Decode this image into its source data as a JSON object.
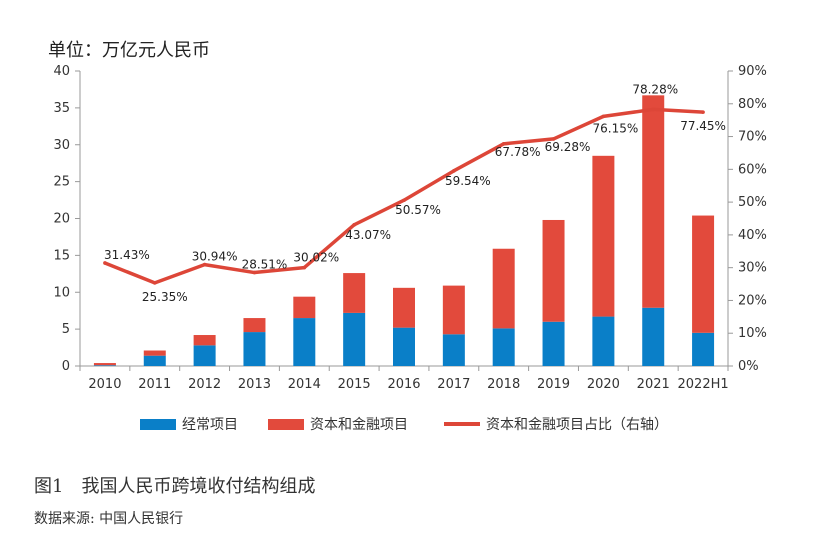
{
  "unit_label": "单位：万亿元人民币",
  "caption": "图1　我国人民币跨境收付结构组成",
  "source": "数据来源: 中国人民银行",
  "colors": {
    "current_account": "#0a7fc8",
    "capital_financial": "#e24a3c",
    "ratio_line": "#dd4638",
    "axis": "#999999"
  },
  "chart_data": {
    "type": "bar",
    "stacked": true,
    "categories": [
      "2010",
      "2011",
      "2012",
      "2013",
      "2014",
      "2015",
      "2016",
      "2017",
      "2018",
      "2019",
      "2020",
      "2021",
      "2022H1"
    ],
    "series": [
      {
        "name": "经常项目",
        "type": "bar",
        "axis": "left",
        "values": [
          0.1,
          1.4,
          2.8,
          4.6,
          6.5,
          7.2,
          5.2,
          4.3,
          5.1,
          6.0,
          6.7,
          7.9,
          4.5
        ]
      },
      {
        "name": "资本和金融项目",
        "type": "bar",
        "axis": "left",
        "values": [
          0.3,
          0.7,
          1.4,
          1.9,
          2.9,
          5.4,
          5.4,
          6.6,
          10.8,
          13.8,
          21.8,
          28.8,
          15.9
        ]
      },
      {
        "name": "资本和金融项目占比（右轴）",
        "type": "line",
        "axis": "right",
        "values": [
          31.43,
          25.35,
          30.94,
          28.51,
          30.02,
          43.07,
          50.57,
          59.54,
          67.78,
          69.28,
          76.15,
          78.28,
          77.45
        ],
        "labels": [
          "31.43%",
          "25.35%",
          "30.94%",
          "28.51%",
          "30.02%",
          "43.07%",
          "50.57%",
          "59.54%",
          "67.78%",
          "69.28%",
          "76.15%",
          "78.28%",
          "77.45%"
        ]
      }
    ],
    "y_left": {
      "min": 0,
      "max": 40,
      "ticks": [
        "0",
        "5",
        "10",
        "15",
        "20",
        "25",
        "30",
        "35",
        "40"
      ]
    },
    "y_right": {
      "min": 0,
      "max": 90,
      "ticks": [
        "0%",
        "10%",
        "20%",
        "30%",
        "40%",
        "50%",
        "60%",
        "70%",
        "80%",
        "90%"
      ]
    },
    "grid": false,
    "legend_position": "bottom"
  }
}
